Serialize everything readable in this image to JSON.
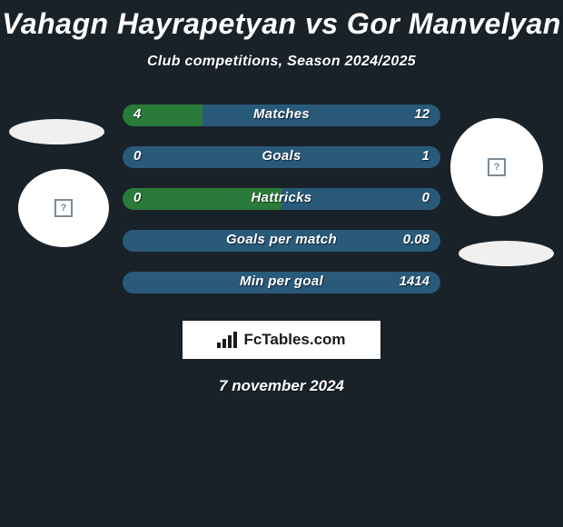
{
  "title": "Vahagn Hayrapetyan vs Gor Manvelyan",
  "subtitle": "Club competitions, Season 2024/2025",
  "date": "7 november 2024",
  "branding": "FcTables.com",
  "colors": {
    "background": "#192129",
    "left_fill": "#2a7a3a",
    "right_fill": "#2a5a7a",
    "text": "#ffffff"
  },
  "stats": [
    {
      "label": "Matches",
      "left_value": "4",
      "right_value": "12",
      "left_pct": 25,
      "right_pct": 75,
      "left_color": "#2a7a3a",
      "right_color": "#2a5a7a"
    },
    {
      "label": "Goals",
      "left_value": "0",
      "right_value": "1",
      "left_pct": 0,
      "right_pct": 100,
      "left_color": "#2a7a3a",
      "right_color": "#2a5a7a"
    },
    {
      "label": "Hattricks",
      "left_value": "0",
      "right_value": "0",
      "left_pct": 50,
      "right_pct": 50,
      "left_color": "#2a7a3a",
      "right_color": "#2a5a7a"
    },
    {
      "label": "Goals per match",
      "left_value": "",
      "right_value": "0.08",
      "left_pct": 0,
      "right_pct": 100,
      "left_color": "#2a7a3a",
      "right_color": "#2a5a7a"
    },
    {
      "label": "Min per goal",
      "left_value": "",
      "right_value": "1414",
      "left_pct": 0,
      "right_pct": 100,
      "left_color": "#2a7a3a",
      "right_color": "#2a5a7a"
    }
  ]
}
